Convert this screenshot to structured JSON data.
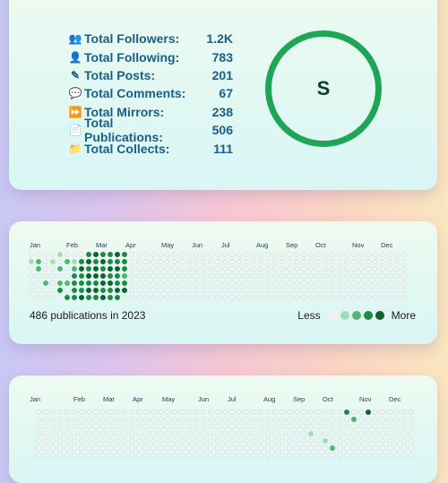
{
  "stats": [
    {
      "icon": "followers-icon",
      "glyph": "👥",
      "label": "Total Followers:",
      "value": "1.2K"
    },
    {
      "icon": "following-icon",
      "glyph": "👤",
      "label": "Total Following:",
      "value": "783"
    },
    {
      "icon": "pencil-icon",
      "glyph": "✎",
      "label": "Total Posts:",
      "value": "201"
    },
    {
      "icon": "comment-icon",
      "glyph": "💬",
      "label": "Total Comments:",
      "value": "67"
    },
    {
      "icon": "mirror-icon",
      "glyph": "⏩",
      "label": "Total Mirrors:",
      "value": "238"
    },
    {
      "icon": "document-icon",
      "glyph": "📄",
      "label": "Total Publications:",
      "value": "506"
    },
    {
      "icon": "folder-icon",
      "glyph": "📁",
      "label": "Total Collects:",
      "value": "111"
    }
  ],
  "grade": {
    "letter": "S",
    "ring_color": "#1ea556"
  },
  "heatmap1": {
    "months": [
      "Jan",
      "Feb",
      "Mar",
      "Apr",
      "May",
      "Jun",
      "Jul",
      "Aug",
      "Sep",
      "Oct",
      "Nov",
      "Dec"
    ],
    "summary": "486 publications in 2023",
    "legend": {
      "less": "Less",
      "more": "More",
      "colors": [
        "#eef1ef",
        "#a6dcb4",
        "#4fb86e",
        "#1f8a46",
        "#0f6131"
      ]
    }
  },
  "heatmap2": {
    "months": [
      "Jan",
      "Feb",
      "Mar",
      "Apr",
      "May",
      "Jun",
      "Jul",
      "Aug",
      "Sep",
      "Oct",
      "Nov",
      "Dec"
    ]
  }
}
